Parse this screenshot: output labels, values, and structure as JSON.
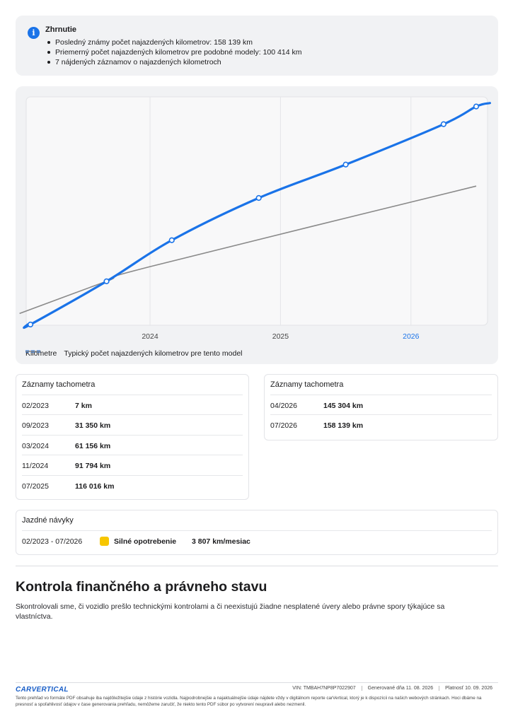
{
  "summary": {
    "icon": "info-icon",
    "title": "Zhrnutie",
    "bullets": [
      "Posledný známy počet najazdených kilometrov: 158 139 km",
      "Priemerný počet najazdených kilometrov pre podobné modely: 100 414 km",
      "7 nájdených záznamov o najazdených kilometroch"
    ]
  },
  "chart_data": {
    "type": "line",
    "x_ticks": [
      "2024",
      "2025",
      "2026"
    ],
    "xlim": [
      "2023-02",
      "2026-07"
    ],
    "ylim": [
      0,
      160000
    ],
    "grid": true,
    "legend_position": "bottom-left",
    "series": [
      {
        "name": "Kilometre",
        "color": "#1a73e8",
        "style": "solid-dotted-points",
        "points": [
          {
            "x": "2023-02",
            "y": 7
          },
          {
            "x": "2023-09",
            "y": 31350
          },
          {
            "x": "2024-03",
            "y": 61156
          },
          {
            "x": "2024-11",
            "y": 91794
          },
          {
            "x": "2025-07",
            "y": 116016
          },
          {
            "x": "2026-04",
            "y": 145304
          },
          {
            "x": "2026-07",
            "y": 158139
          }
        ]
      },
      {
        "name": "Typický počet najazdených kilometrov pre tento model",
        "color": "#8a8a8a",
        "style": "solid",
        "points": [
          {
            "x": "2023-01",
            "y": 8000
          },
          {
            "x": "2023-09",
            "y": 31350
          },
          {
            "x": "2024-01",
            "y": 42000
          },
          {
            "x": "2026-07",
            "y": 100414
          }
        ]
      }
    ]
  },
  "odometer_left": {
    "title": "Záznamy tachometra",
    "rows": [
      {
        "date": "02/2023",
        "value": "7 km"
      },
      {
        "date": "09/2023",
        "value": "31 350 km"
      },
      {
        "date": "03/2024",
        "value": "61 156 km"
      },
      {
        "date": "11/2024",
        "value": "91 794 km"
      },
      {
        "date": "07/2025",
        "value": "116 016 km"
      }
    ]
  },
  "odometer_right": {
    "title": "Záznamy tachometra",
    "rows": [
      {
        "date": "04/2026",
        "value": "145 304 km"
      },
      {
        "date": "07/2026",
        "value": "158 139 km"
      }
    ]
  },
  "habits": {
    "title": "Jazdné návyky",
    "period": "02/2023 - 07/2026",
    "level": "Silné opotrebenie",
    "level_color": "#f7c600",
    "rate": "3 807 km/mesiac"
  },
  "section": {
    "title": "Kontrola finančného a právneho stavu",
    "text": "Skontrolovali sme, či vozidlo prešlo technickými kontrolami a či neexistujú žiadne nesplatené úvery alebo právne spory týkajúce sa vlastníctva."
  },
  "footer": {
    "logo": "CARVERTICAL",
    "vin": "VIN: TMBAH7NP8P7022907",
    "generated": "Generované dňa 11. 08. 2026",
    "valid": "Platnosť 10. 09. 2026",
    "note": "Tento prehľad vo formáte PDF obsahuje iba najdôležitejšie údaje z histórie vozidla. Najpodrobnejšie a najaktuálnejšie údaje nájdete vždy v digitálnom reporte carVertical, ktorý je k dispozícii na našich webových stránkach. Hoci dbáme na presnosť a spoľahlivosť údajov v čase generovania prehľadu, nemôžeme zaručiť, že niekto tento PDF súbor po vytvorení neupravil alebo nezmenil."
  }
}
